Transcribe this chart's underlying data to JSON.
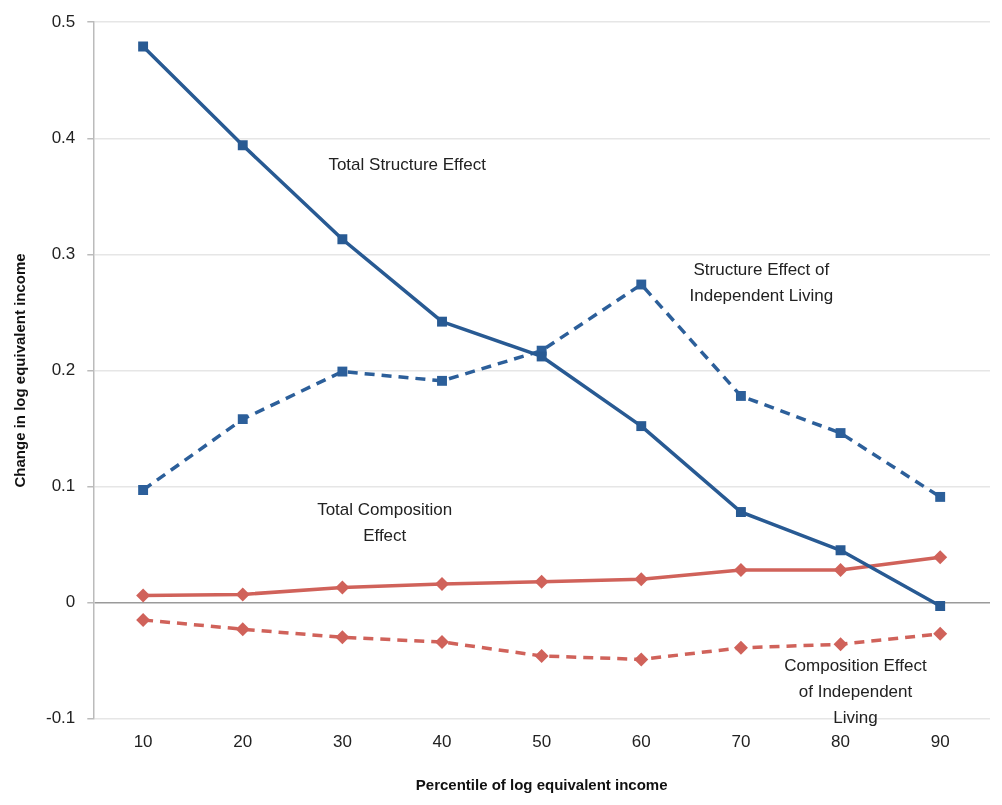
{
  "chart_data": {
    "type": "line",
    "xlabel": "Percentile of log equivalent income",
    "ylabel": "Change in log equivalent income",
    "x": [
      10,
      20,
      30,
      40,
      50,
      60,
      70,
      80,
      90
    ],
    "xlim": [
      5,
      95
    ],
    "xticks": [
      10,
      20,
      30,
      40,
      50,
      60,
      70,
      80,
      90
    ],
    "ylim": [
      -0.1,
      0.5
    ],
    "yticks": [
      -0.1,
      0,
      0.1,
      0.2,
      0.3,
      0.4,
      0.5
    ],
    "grid": "y",
    "legend": false,
    "series": [
      {
        "name": "Total Structure Effect",
        "color": "#285a93",
        "marker": "square",
        "line_style": "solid",
        "values": [
          0.479,
          0.394,
          0.313,
          0.242,
          0.212,
          0.152,
          0.078,
          0.045,
          -0.003
        ]
      },
      {
        "name": "Structure Effect of\nIndependent Living",
        "color": "#2c5f9a",
        "marker": "square",
        "line_style": "dashed",
        "values": [
          0.097,
          0.158,
          0.199,
          0.191,
          0.217,
          0.274,
          0.178,
          0.146,
          0.091
        ]
      },
      {
        "name": "Total Composition\nEffect",
        "color": "#d0625a",
        "marker": "diamond",
        "line_style": "solid",
        "values": [
          0.006,
          0.007,
          0.013,
          0.016,
          0.018,
          0.02,
          0.028,
          0.028,
          0.039
        ]
      },
      {
        "name": "Composition Effect\nof Independent\nLiving",
        "color": "#d0625a",
        "marker": "diamond",
        "line_style": "dashed",
        "values": [
          -0.015,
          -0.023,
          -0.03,
          -0.034,
          -0.046,
          -0.049,
          -0.039,
          -0.036,
          -0.027
        ]
      }
    ]
  }
}
